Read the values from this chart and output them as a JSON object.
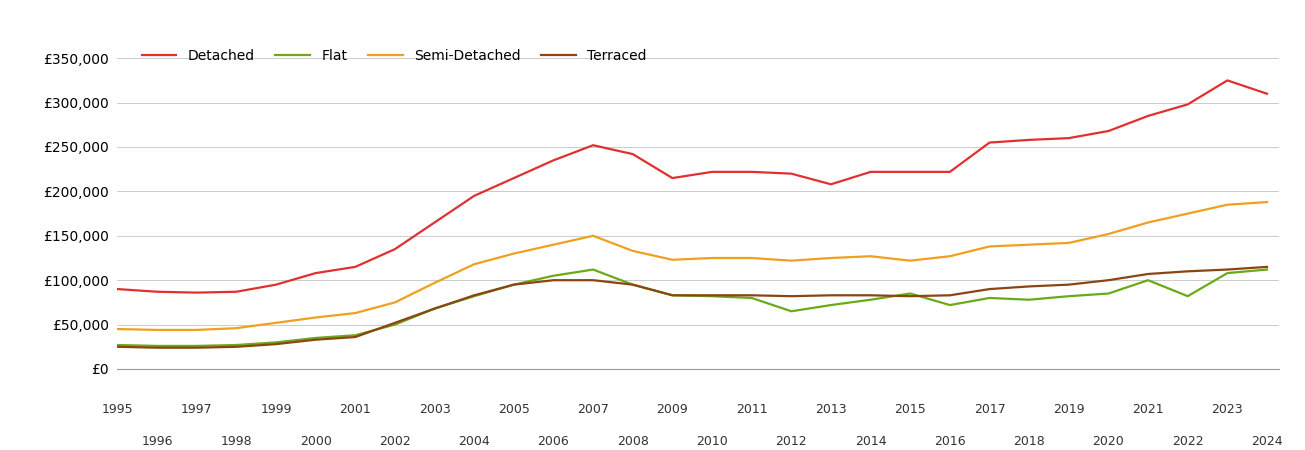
{
  "years": [
    1995,
    1996,
    1997,
    1998,
    1999,
    2000,
    2001,
    2002,
    2003,
    2004,
    2005,
    2006,
    2007,
    2008,
    2009,
    2010,
    2011,
    2012,
    2013,
    2014,
    2015,
    2016,
    2017,
    2018,
    2019,
    2020,
    2021,
    2022,
    2023,
    2024
  ],
  "detached": [
    90000,
    87000,
    86000,
    87000,
    95000,
    108000,
    115000,
    135000,
    165000,
    195000,
    215000,
    235000,
    252000,
    242000,
    215000,
    222000,
    222000,
    220000,
    208000,
    222000,
    222000,
    222000,
    255000,
    258000,
    260000,
    268000,
    285000,
    298000,
    325000,
    310000
  ],
  "flat": [
    27000,
    26000,
    26000,
    27000,
    30000,
    35000,
    38000,
    50000,
    68000,
    82000,
    95000,
    105000,
    112000,
    95000,
    83000,
    82000,
    80000,
    65000,
    72000,
    78000,
    85000,
    72000,
    80000,
    78000,
    82000,
    85000,
    100000,
    82000,
    108000,
    112000
  ],
  "semi_detached": [
    45000,
    44000,
    44000,
    46000,
    52000,
    58000,
    63000,
    75000,
    97000,
    118000,
    130000,
    140000,
    150000,
    133000,
    123000,
    125000,
    125000,
    122000,
    125000,
    127000,
    122000,
    127000,
    138000,
    140000,
    142000,
    152000,
    165000,
    175000,
    185000,
    188000
  ],
  "terraced": [
    25000,
    24000,
    24000,
    25000,
    28000,
    33000,
    36000,
    52000,
    68000,
    83000,
    95000,
    100000,
    100000,
    95000,
    83000,
    83000,
    83000,
    82000,
    83000,
    83000,
    82000,
    83000,
    90000,
    93000,
    95000,
    100000,
    107000,
    110000,
    112000,
    115000
  ],
  "colors": {
    "detached": "#e03030",
    "flat": "#6aaa18",
    "semi_detached": "#f0a020",
    "terraced": "#8B4513"
  },
  "ylim": [
    0,
    375000
  ],
  "yticks": [
    0,
    50000,
    100000,
    150000,
    200000,
    250000,
    300000,
    350000
  ],
  "background_color": "#ffffff",
  "line_width": 1.6
}
